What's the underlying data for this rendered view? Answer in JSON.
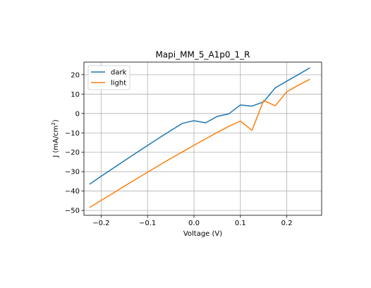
{
  "chart_data": {
    "type": "line",
    "title": "Mapi_MM_5_A1p0_1_R",
    "xlabel": "Voltage (V)",
    "ylabel_main": "J (mA/cm",
    "ylabel_sup": "2",
    "ylabel_tail": ")",
    "xlim": [
      -0.237,
      0.275
    ],
    "ylim": [
      -52.5,
      26.5
    ],
    "xticks": [
      -0.2,
      -0.1,
      0.0,
      0.1,
      0.2
    ],
    "xtick_labels": [
      "−0.2",
      "−0.1",
      "0.0",
      "0.1",
      "0.2"
    ],
    "yticks": [
      -50,
      -40,
      -30,
      -20,
      -10,
      0,
      10,
      20
    ],
    "ytick_labels": [
      "−50",
      "−40",
      "−30",
      "−20",
      "−10",
      "0",
      "10",
      "20"
    ],
    "grid": true,
    "legend_position": "top-left",
    "series": [
      {
        "name": "dark",
        "color": "#1f77b4",
        "x": [
          -0.225,
          -0.2,
          -0.175,
          -0.15,
          -0.125,
          -0.1,
          -0.075,
          -0.05,
          -0.025,
          0.0,
          0.025,
          0.05,
          0.075,
          0.1,
          0.125,
          0.15,
          0.175,
          0.2,
          0.225,
          0.25
        ],
        "y": [
          -36.5,
          -32.4,
          -28.4,
          -24.4,
          -20.4,
          -16.5,
          -12.6,
          -8.8,
          -5.1,
          -3.7,
          -4.8,
          -1.5,
          -0.2,
          4.4,
          3.8,
          6.0,
          13.2,
          16.7,
          20.1,
          23.6
        ]
      },
      {
        "name": "light",
        "color": "#ff7f0e",
        "x": [
          -0.225,
          -0.2,
          -0.175,
          -0.15,
          -0.125,
          -0.1,
          -0.075,
          -0.05,
          -0.025,
          0.0,
          0.025,
          0.05,
          0.075,
          0.1,
          0.125,
          0.15,
          0.175,
          0.2,
          0.225,
          0.25
        ],
        "y": [
          -48.5,
          -44.8,
          -41.2,
          -37.5,
          -33.9,
          -30.3,
          -26.7,
          -23.2,
          -19.8,
          -16.4,
          -13.1,
          -9.8,
          -6.6,
          -3.9,
          -8.7,
          6.7,
          4.0,
          11.2,
          14.6,
          17.7
        ]
      }
    ]
  }
}
